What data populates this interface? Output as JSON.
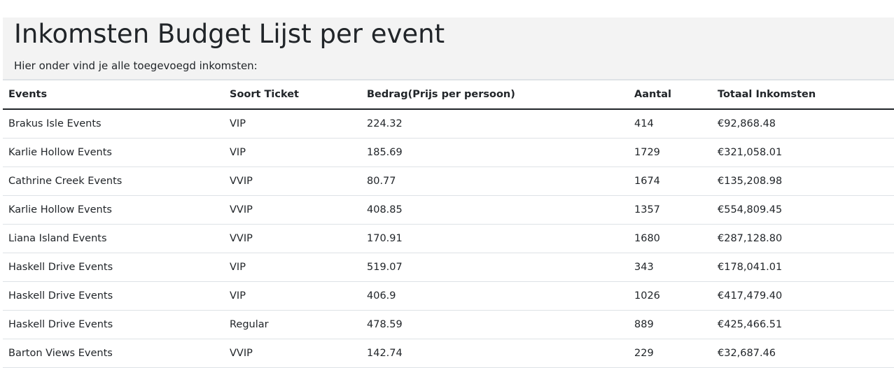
{
  "header": {
    "title": "Inkomsten Budget Lijst per event",
    "subtitle": "Hier onder vind je alle toegevoegd inkomsten:"
  },
  "table": {
    "columns": [
      "Events",
      "Soort Ticket",
      "Bedrag(Prijs per persoon)",
      "Aantal",
      "Totaal Inkomsten"
    ],
    "rows": [
      [
        "Brakus Isle Events",
        "VIP",
        "224.32",
        "414",
        "€92,868.48"
      ],
      [
        "Karlie Hollow Events",
        "VIP",
        "185.69",
        "1729",
        "€321,058.01"
      ],
      [
        "Cathrine Creek Events",
        "VVIP",
        "80.77",
        "1674",
        "€135,208.98"
      ],
      [
        "Karlie Hollow Events",
        "VVIP",
        "408.85",
        "1357",
        "€554,809.45"
      ],
      [
        "Liana Island Events",
        "VVIP",
        "170.91",
        "1680",
        "€287,128.80"
      ],
      [
        "Haskell Drive Events",
        "VIP",
        "519.07",
        "343",
        "€178,041.01"
      ],
      [
        "Haskell Drive Events",
        "VIP",
        "406.9",
        "1026",
        "€417,479.40"
      ],
      [
        "Haskell Drive Events",
        "Regular",
        "478.59",
        "889",
        "€425,466.51"
      ],
      [
        "Barton Views Events",
        "VVIP",
        "142.74",
        "229",
        "€32,687.46"
      ]
    ]
  }
}
